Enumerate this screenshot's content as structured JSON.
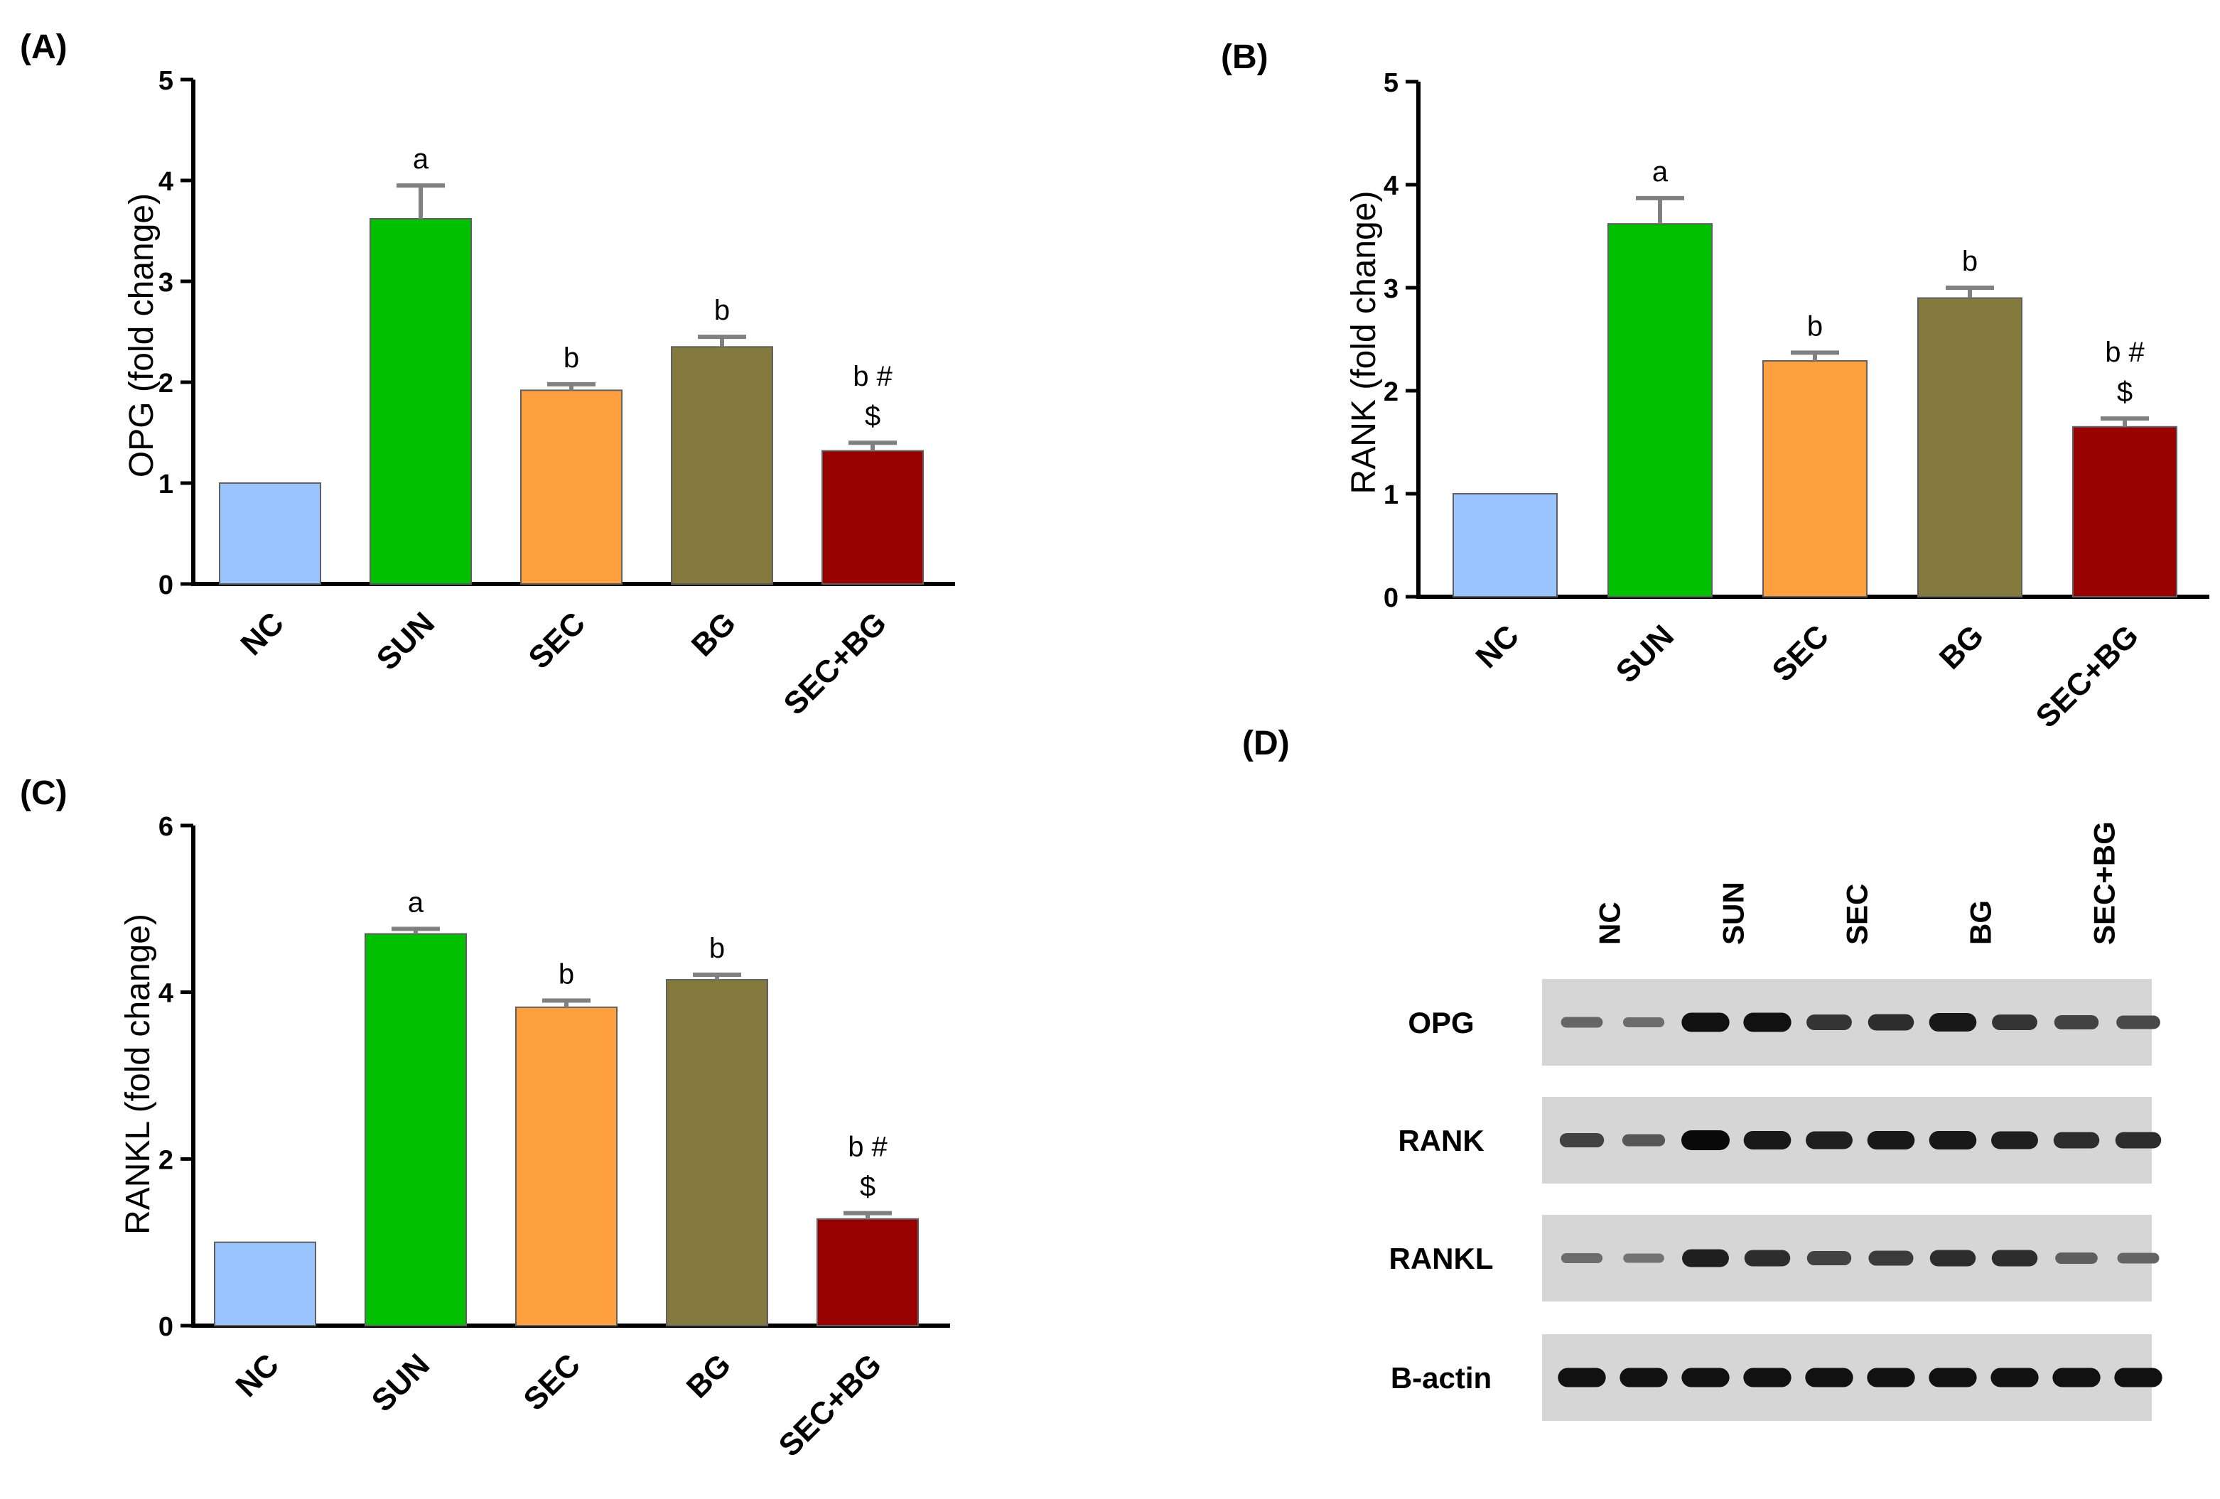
{
  "colors": {
    "NC": "#99c4ff",
    "SUN": "#00c000",
    "SEC": "#ffa040",
    "BG": "#857a3e",
    "SEC+BG": "#990000",
    "error_bar": "#808080",
    "bar_outline": "#606060"
  },
  "chart_data": [
    {
      "id": "A",
      "panel_label": "(A)",
      "type": "bar",
      "title": "",
      "xlabel": "",
      "ylabel": "OPG (fold change)",
      "ylim": [
        0,
        5
      ],
      "yticks": [
        0,
        1,
        2,
        3,
        4,
        5
      ],
      "categories": [
        "NC",
        "SUN",
        "SEC",
        "BG",
        "SEC+BG"
      ],
      "values": [
        1.0,
        3.62,
        1.92,
        2.35,
        1.32
      ],
      "errors": [
        0,
        0.33,
        0.06,
        0.1,
        0.08
      ],
      "annotations": [
        [],
        [
          "a"
        ],
        [
          "b"
        ],
        [
          "b"
        ],
        [
          "b #",
          "$"
        ]
      ]
    },
    {
      "id": "B",
      "panel_label": "(B)",
      "type": "bar",
      "title": "",
      "xlabel": "",
      "ylabel": "RANK (fold change)",
      "ylim": [
        0,
        5
      ],
      "yticks": [
        0,
        1,
        2,
        3,
        4,
        5
      ],
      "categories": [
        "NC",
        "SUN",
        "SEC",
        "BG",
        "SEC+BG"
      ],
      "values": [
        1.0,
        3.62,
        2.29,
        2.9,
        1.65
      ],
      "errors": [
        0,
        0.25,
        0.08,
        0.1,
        0.08
      ],
      "annotations": [
        [],
        [
          "a"
        ],
        [
          "b"
        ],
        [
          "b"
        ],
        [
          "b #",
          "$"
        ]
      ]
    },
    {
      "id": "C",
      "panel_label": "(C)",
      "type": "bar",
      "title": "",
      "xlabel": "",
      "ylabel": "RANKL (fold change)",
      "ylim": [
        0,
        6
      ],
      "yticks": [
        0,
        2,
        4,
        6
      ],
      "categories": [
        "NC",
        "SUN",
        "SEC",
        "BG",
        "SEC+BG"
      ],
      "values": [
        1.0,
        4.7,
        3.82,
        4.15,
        1.28
      ],
      "errors": [
        0,
        0.06,
        0.08,
        0.06,
        0.07
      ],
      "annotations": [
        [],
        [
          "a"
        ],
        [
          "b"
        ],
        [
          "b"
        ],
        [
          "b #",
          "$"
        ]
      ]
    }
  ],
  "western_blot": {
    "panel_label": "(D)",
    "lane_groups": [
      "NC",
      "SUN",
      "SEC",
      "BG",
      "SEC+BG"
    ],
    "rows": [
      {
        "label": "OPG",
        "intensities": [
          0.35,
          0.3,
          0.95,
          0.95,
          0.7,
          0.75,
          0.9,
          0.7,
          0.6,
          0.55
        ]
      },
      {
        "label": "RANK",
        "intensities": [
          0.6,
          0.45,
          1.0,
          0.9,
          0.85,
          0.9,
          0.9,
          0.85,
          0.75,
          0.75
        ]
      },
      {
        "label": "RANKL",
        "intensities": [
          0.3,
          0.25,
          0.85,
          0.75,
          0.6,
          0.65,
          0.75,
          0.75,
          0.4,
          0.35
        ]
      },
      {
        "label": "B-actin",
        "intensities": [
          0.95,
          0.95,
          0.95,
          0.95,
          0.95,
          0.95,
          0.95,
          0.95,
          0.95,
          0.95
        ]
      }
    ]
  }
}
